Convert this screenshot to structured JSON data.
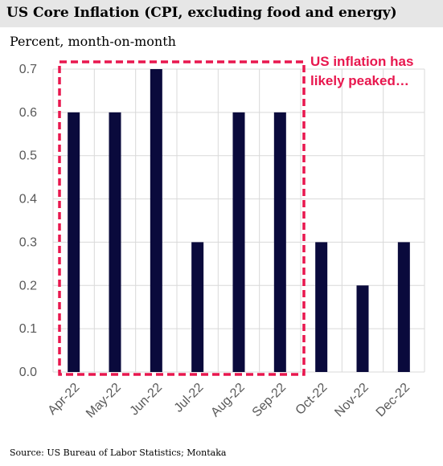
{
  "title": "US Core Inflation (CPI, excluding food and energy)",
  "subtitle": "Percent, month-on-month",
  "source": "Source: US Bureau of Labor Statistics; Montaka",
  "chart_data": {
    "type": "bar",
    "title": "US Core Inflation (CPI, excluding food and energy)",
    "ylabel": "Percent, month-on-month",
    "xlabel": "",
    "categories": [
      "Apr-22",
      "May-22",
      "Jun-22",
      "Jul-22",
      "Aug-22",
      "Sep-22",
      "Oct-22",
      "Nov-22",
      "Dec-22"
    ],
    "values": [
      0.6,
      0.6,
      0.7,
      0.3,
      0.6,
      0.6,
      0.3,
      0.2,
      0.3
    ],
    "ylim": [
      0,
      0.7
    ],
    "yticks": [
      "0.0",
      "0.1",
      "0.2",
      "0.3",
      "0.4",
      "0.5",
      "0.6",
      "0.7"
    ],
    "grid": true,
    "bar_color": "#0a0a3c",
    "annotation": {
      "text_lines": [
        "US inflation has",
        "likely peaked…"
      ],
      "color": "#e8174e",
      "highlight_range": [
        "Apr-22",
        "Sep-22"
      ]
    }
  }
}
